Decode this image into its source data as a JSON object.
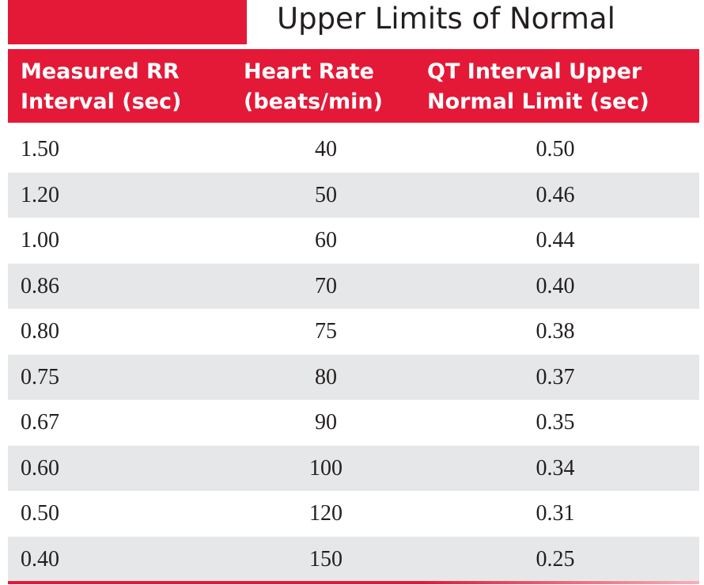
{
  "title": "Upper Limits of Normal",
  "table": {
    "columns": [
      [
        "Measured RR",
        "Interval (sec)"
      ],
      [
        "Heart Rate",
        "(beats/min)"
      ],
      [
        "QT Interval Upper",
        "Normal Limit (sec)"
      ]
    ],
    "rows": [
      [
        "1.50",
        "40",
        "0.50"
      ],
      [
        "1.20",
        "50",
        "0.46"
      ],
      [
        "1.00",
        "60",
        "0.44"
      ],
      [
        "0.86",
        "70",
        "0.40"
      ],
      [
        "0.80",
        "75",
        "0.38"
      ],
      [
        "0.75",
        "80",
        "0.37"
      ],
      [
        "0.67",
        "90",
        "0.35"
      ],
      [
        "0.60",
        "100",
        "0.34"
      ],
      [
        "0.50",
        "120",
        "0.31"
      ],
      [
        "0.40",
        "150",
        "0.25"
      ]
    ]
  }
}
